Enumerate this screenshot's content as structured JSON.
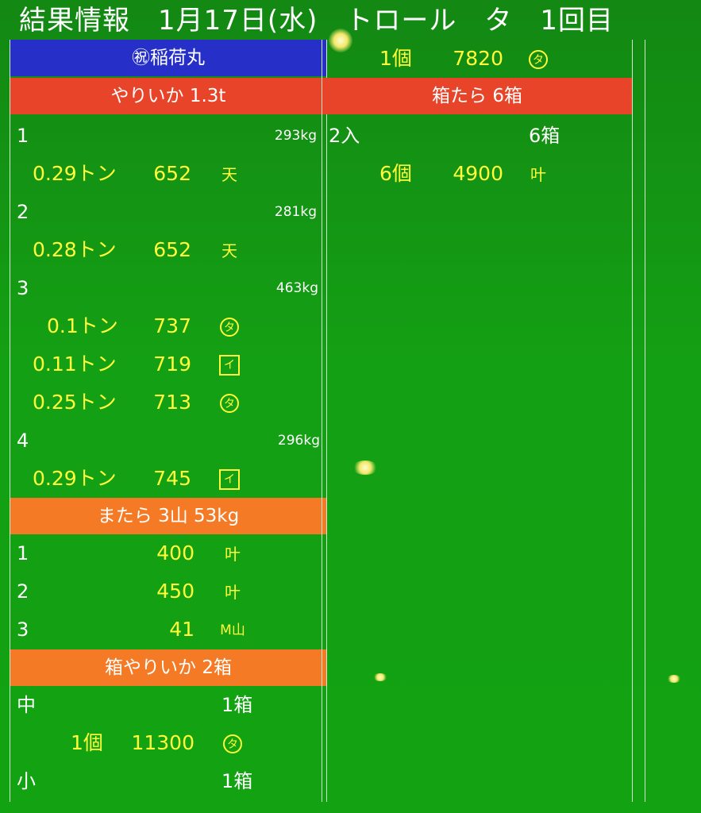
{
  "title": "結果情報　1月17日(水)　トロール　タ　1回目",
  "left": {
    "boat": "㊗稲荷丸",
    "section1": {
      "header": "やりいか 1.3t",
      "lots": [
        {
          "no": "1",
          "weight": "293kg",
          "entries": [
            {
              "qty": "0.29トン",
              "price": "652",
              "mark": "天"
            }
          ]
        },
        {
          "no": "2",
          "weight": "281kg",
          "entries": [
            {
              "qty": "0.28トン",
              "price": "652",
              "mark": "天"
            }
          ]
        },
        {
          "no": "3",
          "weight": "463kg",
          "entries": [
            {
              "qty": "0.1トン",
              "price": "737",
              "mark": "タ"
            },
            {
              "qty": "0.11トン",
              "price": "719",
              "mark": "イ"
            },
            {
              "qty": "0.25トン",
              "price": "713",
              "mark": "タ"
            }
          ]
        },
        {
          "no": "4",
          "weight": "296kg",
          "entries": [
            {
              "qty": "0.29トン",
              "price": "745",
              "mark": "イ"
            }
          ]
        }
      ]
    },
    "section2": {
      "header": "またら 3山 53kg",
      "rows": [
        {
          "no": "1",
          "price": "400",
          "mark": "叶"
        },
        {
          "no": "2",
          "price": "450",
          "mark": "叶"
        },
        {
          "no": "3",
          "price": "41",
          "mark": "M山"
        }
      ]
    },
    "section3": {
      "header": "箱やりいか 2箱",
      "rows": [
        {
          "label": "中",
          "count": "1箱"
        },
        {
          "qty": "1個",
          "price": "11300",
          "mark": "タ"
        },
        {
          "label": "小",
          "count": "1箱"
        }
      ]
    }
  },
  "mid": {
    "top": {
      "qty": "1個",
      "price": "7820",
      "mark": "タ"
    },
    "header": "箱たら 6箱",
    "row1": {
      "label": "2入",
      "count": "6箱"
    },
    "row2": {
      "qty": "6個",
      "price": "4900",
      "mark": "叶"
    }
  },
  "colors": {
    "background": "#14a014",
    "header_blue": "#2630c8",
    "header_red": "#e8442a",
    "header_orange": "#f57a25",
    "text_yellow": "#ffff3a"
  }
}
